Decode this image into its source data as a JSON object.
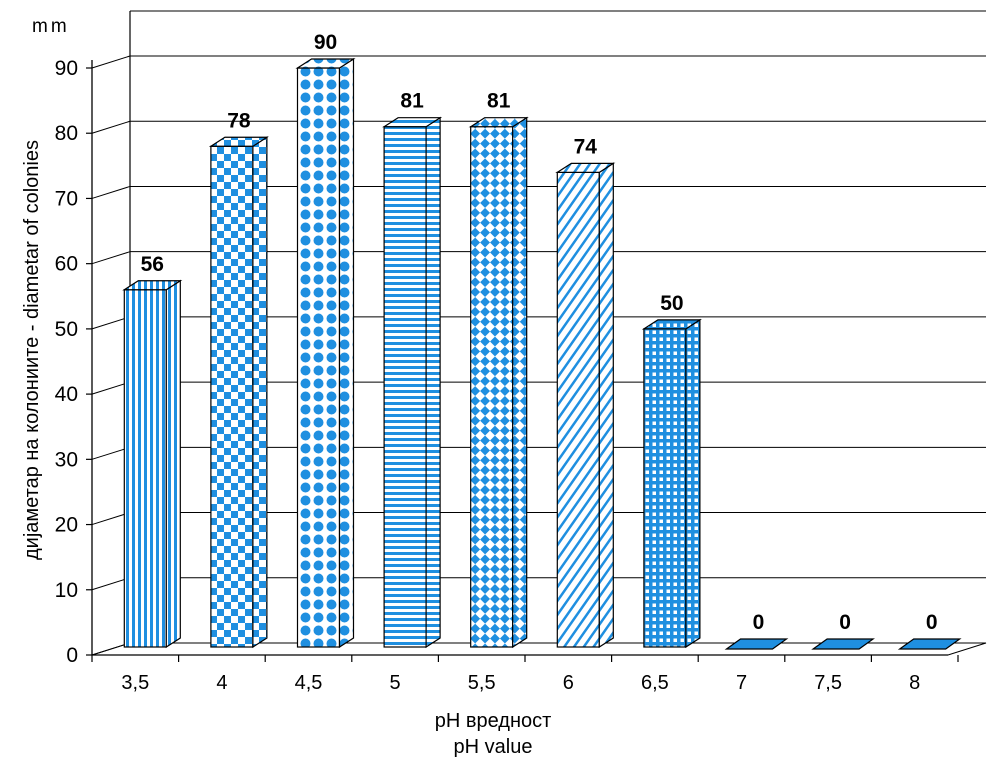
{
  "chart_data": {
    "type": "bar",
    "unit": "mm",
    "ylabel": "дијаметар на колониите  - diametar of colonies",
    "xlabel": "pH вредност",
    "xlabel_en": "pH value",
    "categories": [
      "3,5",
      "4",
      "4,5",
      "5",
      "5,5",
      "6",
      "6,5",
      "7",
      "7,5",
      "8"
    ],
    "values": [
      56,
      78,
      90,
      81,
      81,
      74,
      50,
      0,
      0,
      0
    ],
    "value_labels": [
      "56",
      "78",
      "90",
      "81",
      "81",
      "74",
      "50",
      "0",
      "0",
      "0"
    ],
    "yticks": [
      "0",
      "10",
      "20",
      "30",
      "40",
      "50",
      "60",
      "70",
      "80",
      "90"
    ],
    "ylim": [
      0,
      90
    ],
    "grid": true,
    "style": "3d-bar",
    "bar_patterns": [
      "vertical-stripes",
      "checkerboard",
      "dots",
      "horizontal-stripes",
      "diagonal-checker",
      "diagonal-stripes",
      "grid",
      "solid",
      "solid",
      "solid"
    ],
    "colors": {
      "fill": "#1f8fe0",
      "edge": "#000000",
      "background": "#ffffff"
    }
  }
}
